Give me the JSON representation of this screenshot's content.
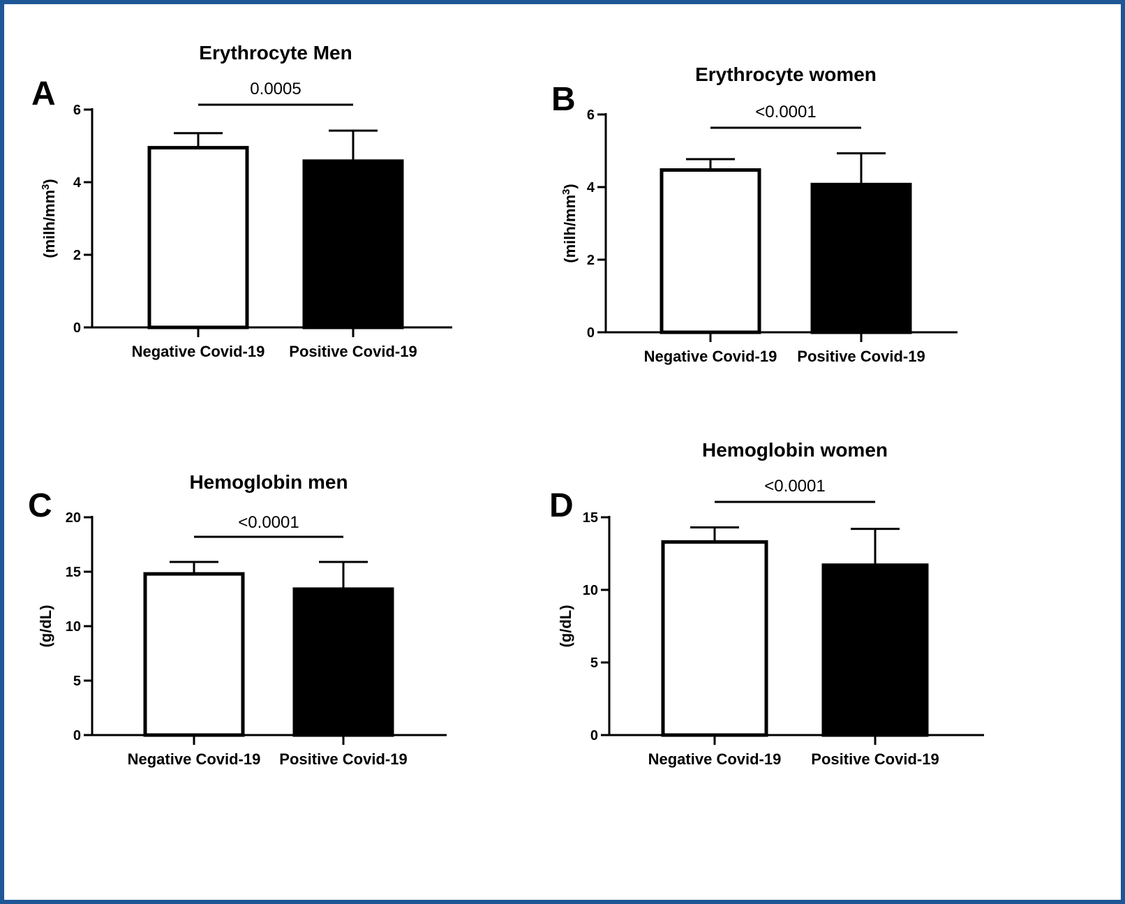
{
  "colors": {
    "frame": "#1f5796",
    "neg_fill": "#ffffff",
    "pos_fill": "#000000",
    "stroke": "#000000"
  },
  "chart_data": [
    {
      "type": "bar",
      "panel_label": "A",
      "title": "Erythrocyte Men",
      "ylabel_main": "(milh/mm",
      "ylabel_sup": "3",
      "ylabel_close": ")",
      "ylim": [
        0,
        6
      ],
      "yticks": [
        0,
        2,
        4,
        6
      ],
      "categories": [
        "Negative Covid-19",
        "Positive Covid-19"
      ],
      "values": [
        4.95,
        4.58
      ],
      "error_upper": [
        5.35,
        5.42
      ],
      "fills": [
        "#ffffff",
        "#000000"
      ],
      "significance": "0.0005"
    },
    {
      "type": "bar",
      "panel_label": "B",
      "title": "Erythrocyte women",
      "ylabel_main": "(milh/mm",
      "ylabel_sup": "3",
      "ylabel_close": ")",
      "ylim": [
        0,
        6
      ],
      "yticks": [
        0,
        2,
        4,
        6
      ],
      "categories": [
        "Negative Covid-19",
        "Positive Covid-19"
      ],
      "values": [
        4.47,
        4.07
      ],
      "error_upper": [
        4.77,
        4.93
      ],
      "fills": [
        "#ffffff",
        "#000000"
      ],
      "significance": "<0.0001"
    },
    {
      "type": "bar",
      "panel_label": "C",
      "title": "Hemoglobin men",
      "ylabel_main": "(g/dL)",
      "ylabel_sup": "",
      "ylabel_close": "",
      "ylim": [
        0,
        20
      ],
      "yticks": [
        0,
        5,
        10,
        15,
        20
      ],
      "categories": [
        "Negative Covid-19",
        "Positive Covid-19"
      ],
      "values": [
        14.8,
        13.4
      ],
      "error_upper": [
        15.9,
        15.9
      ],
      "fills": [
        "#ffffff",
        "#000000"
      ],
      "significance": "<0.0001"
    },
    {
      "type": "bar",
      "panel_label": "D",
      "title": "Hemoglobin women",
      "ylabel_main": "(g/dL)",
      "ylabel_sup": "",
      "ylabel_close": "",
      "ylim": [
        0,
        15
      ],
      "yticks": [
        0,
        5,
        10,
        15
      ],
      "categories": [
        "Negative Covid-19",
        "Positive Covid-19"
      ],
      "values": [
        13.3,
        11.7
      ],
      "error_upper": [
        14.3,
        14.2
      ],
      "fills": [
        "#ffffff",
        "#000000"
      ],
      "significance": "<0.0001"
    }
  ]
}
